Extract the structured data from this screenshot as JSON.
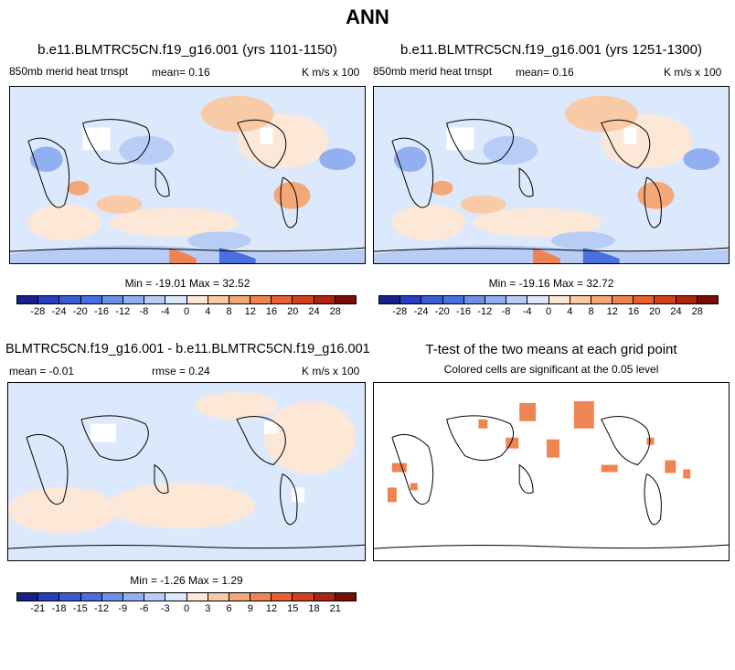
{
  "title": "ANN",
  "panels": {
    "p1": {
      "title": "b.e11.BLMTRC5CN.f19_g16.001 (yrs 1101-1150)",
      "left": "850mb merid heat trnspt",
      "mean": "mean=   0.16",
      "units": "K m/s x 100"
    },
    "p2": {
      "title": "b.e11.BLMTRC5CN.f19_g16.001 (yrs 1251-1300)",
      "left": "850mb merid heat trnspt",
      "mean": "mean=   0.16",
      "units": "K m/s x 100"
    },
    "p3": {
      "title": "BLMTRC5CN.f19_g16.001 - b.e11.BLMTRC5CN.f19_g16.001",
      "mean": "mean =   -0.01",
      "rmse": "rmse =   0.24",
      "units": "K m/s x 100"
    },
    "p4": {
      "title": "T-test of the two means at each grid point",
      "subtitle": "Colored cells are significant at the 0.05 level"
    }
  },
  "stats": {
    "top_left": "Min = -19.01 Max =  32.52",
    "top_right": "Min = -19.16 Max =  32.72",
    "bottom": "Min = -1.26 Max =  1.29"
  },
  "colorbar_colors": [
    "#1b1f8a",
    "#2a3fbf",
    "#3b5bd6",
    "#4a6fe0",
    "#6d8fe6",
    "#92aff0",
    "#b8cdf5",
    "#dce8fb",
    "#fde8d8",
    "#f8caa6",
    "#f4a878",
    "#ef8453",
    "#e86034",
    "#d2401d",
    "#b0230e",
    "#7a0e06"
  ],
  "colorbar_main_ticks": [
    "-28",
    "-24",
    "-20",
    "-16",
    "-12",
    "-8",
    "-4",
    "0",
    "4",
    "8",
    "12",
    "16",
    "20",
    "24",
    "28"
  ],
  "colorbar_diff_ticks": [
    "-21",
    "-18",
    "-15",
    "-12",
    "-9",
    "-6",
    "-3",
    "0",
    "3",
    "6",
    "9",
    "12",
    "15",
    "18",
    "21"
  ]
}
